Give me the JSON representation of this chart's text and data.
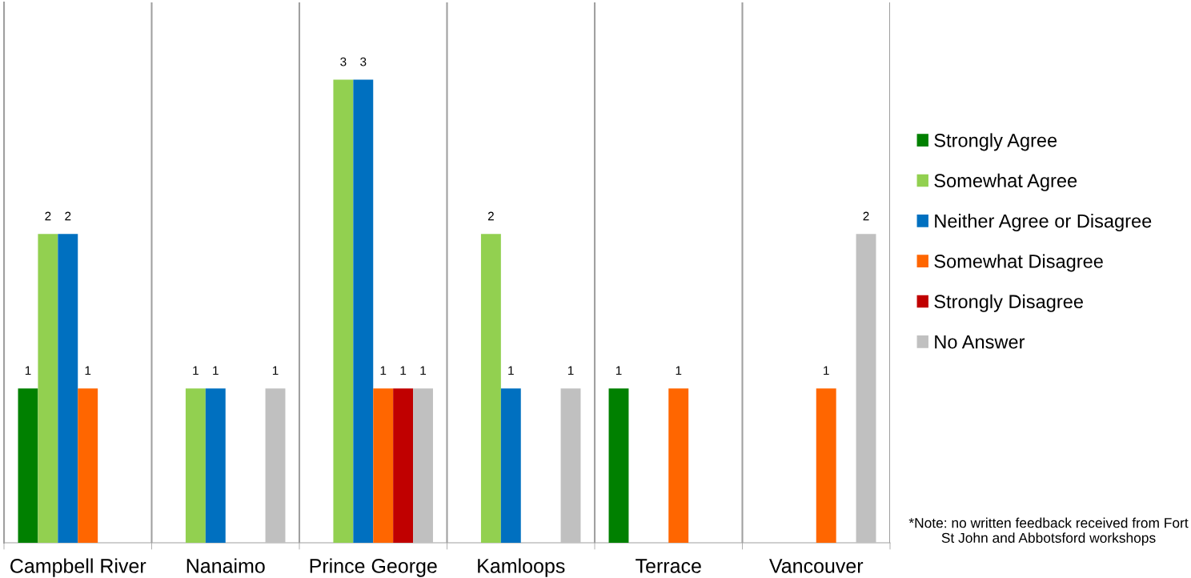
{
  "chart_data": {
    "type": "bar",
    "categories": [
      "Campbell River",
      "Nanaimo",
      "Prince George",
      "Kamloops",
      "Terrace",
      "Vancouver"
    ],
    "series": [
      {
        "name": "Strongly Agree",
        "color": "#008000",
        "values": [
          1,
          null,
          null,
          null,
          1,
          null
        ]
      },
      {
        "name": "Somewhat Agree",
        "color": "#92d050",
        "values": [
          2,
          1,
          3,
          2,
          null,
          null
        ]
      },
      {
        "name": "Neither Agree or Disagree",
        "color": "#0070c0",
        "values": [
          2,
          1,
          3,
          1,
          null,
          null
        ]
      },
      {
        "name": "Somewhat Disagree",
        "color": "#ff6600",
        "values": [
          1,
          null,
          1,
          null,
          1,
          1
        ]
      },
      {
        "name": "Strongly Disagree",
        "color": "#c00000",
        "values": [
          null,
          null,
          1,
          null,
          null,
          null
        ]
      },
      {
        "name": "No Answer",
        "color": "#c0c0c0",
        "values": [
          null,
          1,
          1,
          1,
          null,
          2
        ]
      }
    ],
    "ylim": [
      0,
      3.5
    ],
    "tick_labels": "x",
    "data_labels": true,
    "grid": "x",
    "legend": "right",
    "annotations": [
      "*Note: no written feedback received from Fort St John and Abbotsford workshops"
    ]
  }
}
